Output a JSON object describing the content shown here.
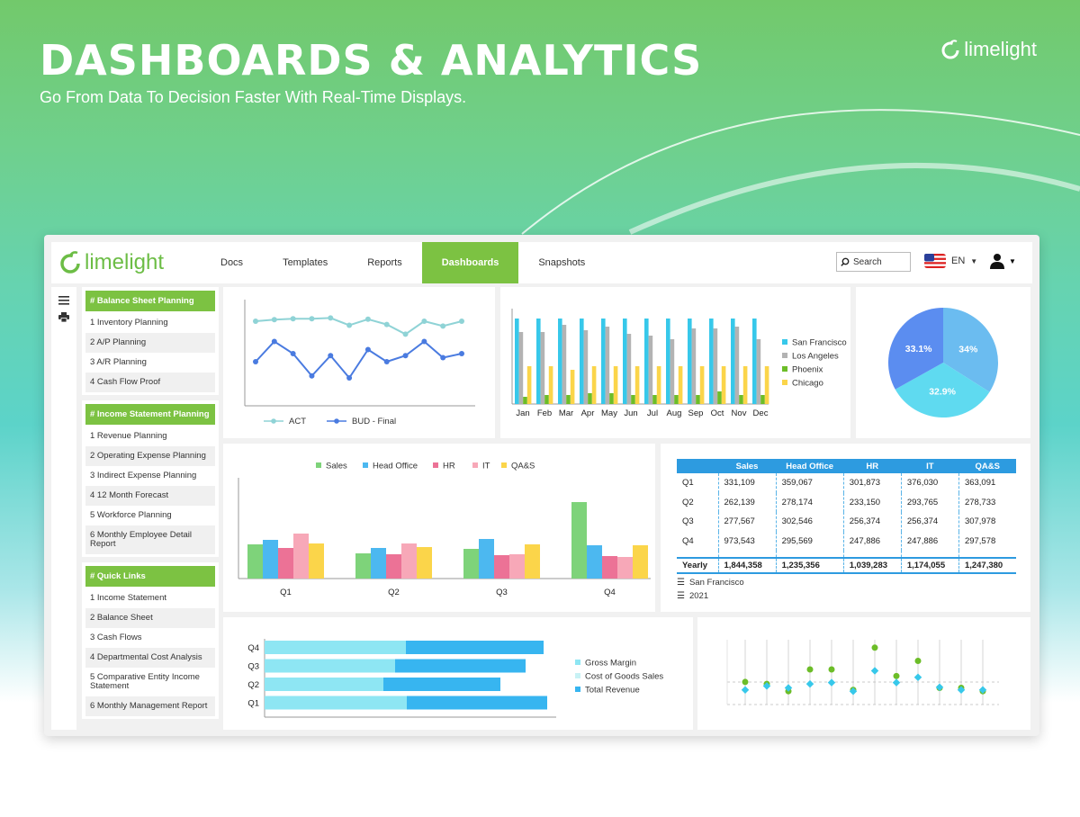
{
  "hero": {
    "title": "DASHBOARDS & ANALYTICS",
    "subtitle": "Go From Data To Decision Faster With Real-Time Displays.",
    "brand": "limelight"
  },
  "app": {
    "logo": "limelight",
    "nav": [
      "Docs",
      "Templates",
      "Reports",
      "Dashboards",
      "Snapshots"
    ],
    "active_nav": "Dashboards",
    "search_label": "Search",
    "lang": "EN",
    "accent": "#7cc242",
    "rail_icons": [
      "menu-icon",
      "print-icon"
    ]
  },
  "sidebar": {
    "groups": [
      {
        "title": "# Balance Sheet Planning",
        "items": [
          "1  Inventory Planning",
          "2  A/P Planning",
          "3  A/R Planning",
          "4  Cash Flow Proof"
        ]
      },
      {
        "title": "# Income Statement Planning",
        "items": [
          "1  Revenue Planning",
          "2  Operating Expense Planning",
          "3  Indirect Expense Planning",
          "4  12 Month Forecast",
          "5  Workforce Planning",
          "6  Monthly Employee Detail Report"
        ]
      },
      {
        "title": "# Quick Links",
        "items": [
          "1  Income Statement",
          "2  Balance Sheet",
          "3  Cash Flows",
          "4  Departmental Cost Analysis",
          "5  Comparative Entity Income Statement",
          "6  Monthly Management Report"
        ]
      }
    ]
  },
  "chart_data": [
    {
      "type": "line",
      "x": [
        1,
        2,
        3,
        4,
        5,
        6,
        7,
        8,
        9,
        10,
        11,
        12
      ],
      "series": [
        {
          "name": "ACT",
          "color": "#8fd3d6",
          "values": [
            8,
            8.4,
            8.6,
            8.6,
            8.8,
            7,
            8.5,
            7.2,
            4.8,
            8,
            6.8,
            8
          ]
        },
        {
          "name": "BUD - Final",
          "color": "#4a7be0",
          "values": [
            -2,
            3,
            0,
            -5.5,
            -0.5,
            -6,
            1,
            -2,
            -0.5,
            3,
            -1,
            0
          ]
        }
      ],
      "title": "",
      "xlabel": "",
      "ylabel": ""
    },
    {
      "type": "bar",
      "categories": [
        "Jan",
        "Feb",
        "Mar",
        "Apr",
        "May",
        "Jun",
        "Jul",
        "Aug",
        "Sep",
        "Oct",
        "Nov",
        "Dec"
      ],
      "series": [
        {
          "name": "San Francisco",
          "color": "#37c8ea",
          "values": [
            95,
            95,
            95,
            95,
            95,
            95,
            95,
            95,
            95,
            95,
            95,
            95
          ]
        },
        {
          "name": "Los Angeles",
          "color": "#b3b3b3",
          "values": [
            80,
            80,
            88,
            82,
            86,
            78,
            76,
            72,
            84,
            84,
            86,
            72
          ]
        },
        {
          "name": "Phoenix",
          "color": "#6cbd28",
          "values": [
            8,
            10,
            10,
            12,
            12,
            10,
            10,
            10,
            10,
            14,
            10,
            10
          ]
        },
        {
          "name": "Chicago",
          "color": "#fbd54a",
          "values": [
            42,
            42,
            38,
            42,
            42,
            42,
            42,
            42,
            42,
            42,
            42,
            42
          ]
        }
      ],
      "ylim": [
        0,
        100
      ]
    },
    {
      "type": "pie",
      "slices": [
        {
          "label": "34%",
          "value": 34,
          "color": "#6bbcf0"
        },
        {
          "label": "32.9%",
          "value": 32.9,
          "color": "#5fdaf0"
        },
        {
          "label": "33.1%",
          "value": 33.1,
          "color": "#5b8df0"
        }
      ]
    },
    {
      "type": "bar",
      "categories": [
        "Q1",
        "Q2",
        "Q3",
        "Q4"
      ],
      "series": [
        {
          "name": "Sales",
          "color": "#7ed37a",
          "values": [
            38,
            28,
            33,
            85
          ]
        },
        {
          "name": "Head Office",
          "color": "#4cb8f0",
          "values": [
            43,
            34,
            44,
            37
          ]
        },
        {
          "name": "HR",
          "color": "#ec7296",
          "values": [
            34,
            27,
            26,
            25
          ]
        },
        {
          "name": "IT",
          "color": "#f7a8b8",
          "values": [
            50,
            39,
            27,
            24
          ]
        },
        {
          "name": "QA&S",
          "color": "#fbd54a",
          "values": [
            39,
            35,
            38,
            37
          ]
        }
      ],
      "ylim": [
        0,
        100
      ]
    },
    {
      "type": "table",
      "columns": [
        "",
        "Sales",
        "Head Office",
        "HR",
        "IT",
        "QA&S"
      ],
      "rows": [
        [
          "Q1",
          "331,109",
          "359,067",
          "301,873",
          "376,030",
          "363,091"
        ],
        [
          "Q2",
          "262,139",
          "278,174",
          "233,150",
          "293,765",
          "278,733"
        ],
        [
          "Q3",
          "277,567",
          "302,546",
          "256,374",
          "256,374",
          "307,978"
        ],
        [
          "Q4",
          "973,543",
          "295,569",
          "247,886",
          "247,886",
          "297,578"
        ]
      ],
      "total": [
        "Yearly",
        "1,844,358",
        "1,235,356",
        "1,039,283",
        "1,174,055",
        "1,247,380"
      ],
      "footer": [
        "San Francisco",
        "2021"
      ]
    },
    {
      "type": "bar",
      "orientation": "horizontal",
      "stacked": true,
      "categories": [
        "Q4",
        "Q3",
        "Q2",
        "Q1"
      ],
      "series": [
        {
          "name": "Gross Margin",
          "color": "#8ee6f3",
          "values": [
            0,
            0,
            0,
            0
          ]
        },
        {
          "name": "Cost of Goods Sales",
          "color": "#8ee6f3",
          "values": [
            157,
            145,
            132,
            158
          ]
        },
        {
          "name": "Total Revenue",
          "color": "#37b5f0",
          "values": [
            153,
            145,
            130,
            156
          ]
        }
      ],
      "xlim": [
        0,
        320
      ]
    },
    {
      "type": "scatter",
      "x": [
        1,
        2,
        3,
        4,
        5,
        6,
        7,
        8,
        9,
        10,
        11,
        12
      ],
      "series": [
        {
          "color": "#6cbd28",
          "values": [
            2.6,
            2.3,
            1.2,
            4.5,
            4.5,
            1.4,
            7.8,
            3.5,
            5.8,
            1.7,
            1.7,
            1.2
          ]
        },
        {
          "color": "#37c8ea",
          "values": [
            1.4,
            2,
            1.7,
            2.3,
            2.5,
            1.2,
            4.3,
            2.5,
            3.3,
            1.8,
            1.4,
            1.4
          ]
        }
      ],
      "ylim": [
        0,
        9
      ]
    }
  ]
}
